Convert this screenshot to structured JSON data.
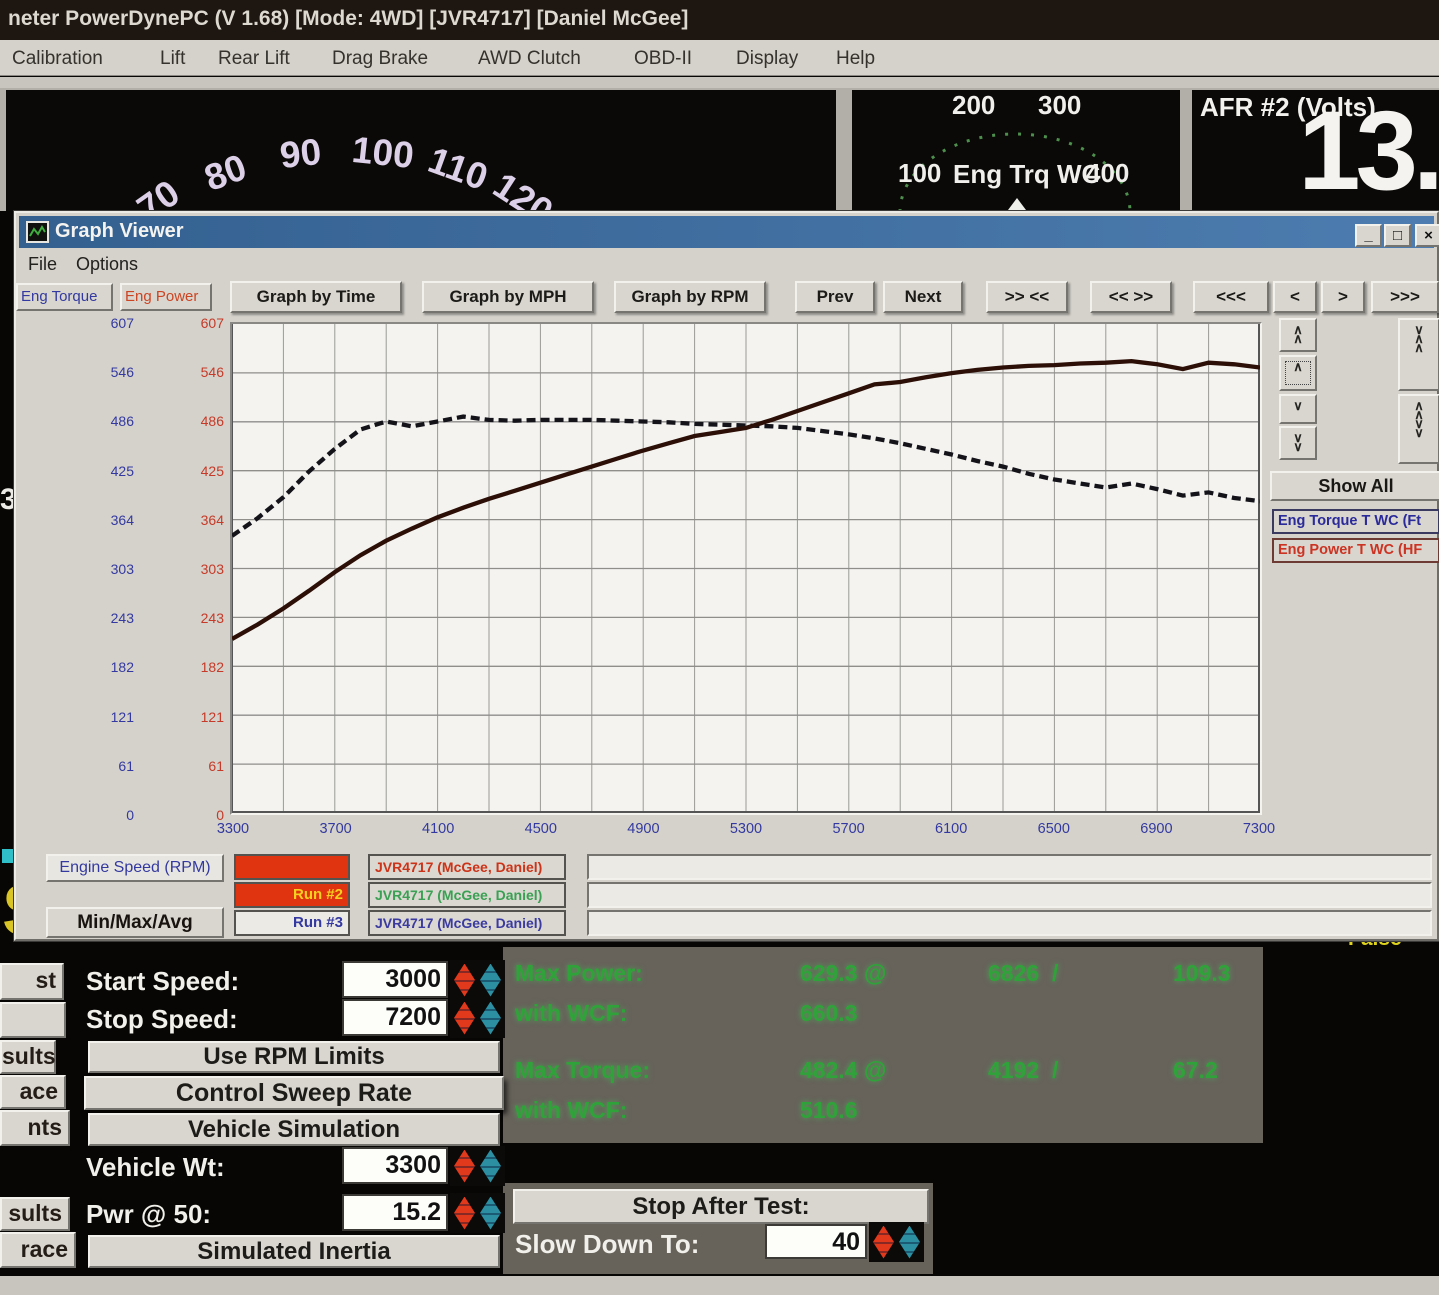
{
  "app": {
    "title": "neter PowerDynePC (V 1.68) [Mode: 4WD] [JVR4717] [Daniel McGee]",
    "menus": [
      "Calibration",
      "Lift",
      "Rear Lift",
      "Drag Brake",
      "AWD Clutch",
      "OBD-II",
      "Display",
      "Help"
    ]
  },
  "gauges": {
    "speed": {
      "ticks": [
        "70",
        "80",
        "90",
        "100",
        "110",
        "120"
      ]
    },
    "torque": {
      "ticks": [
        "100",
        "200",
        "300",
        "400"
      ],
      "label": "Eng Trq WC"
    },
    "afr": {
      "label": "AFR #2 (Volts)",
      "value": "13."
    }
  },
  "icons": {
    "minimize": "_",
    "maximize": "□",
    "close": "×",
    "up": "∧",
    "down": "∨",
    "window_icon": "graph-waveform"
  },
  "viewer": {
    "title": "Graph Viewer",
    "menus": [
      "File",
      "Options"
    ],
    "tabs": [
      "Eng Torque",
      "Eng Power"
    ],
    "toolbar": [
      "Graph by Time",
      "Graph by MPH",
      "Graph by RPM",
      "Prev",
      "Next",
      ">> <<",
      "<< >>",
      "<<<",
      "<",
      ">",
      ">>>"
    ],
    "side": {
      "show_all": "Show All",
      "legend": [
        "Eng Torque T WC (Ft",
        "Eng Power T WC (HF"
      ],
      "button_patterns": [
        "uu",
        "u",
        "d",
        "dd",
        "duu",
        "uudd"
      ]
    },
    "runs": {
      "engine_speed_btn": "Engine Speed (RPM)",
      "minmax_btn": "Min/Max/Avg",
      "rows": [
        {
          "run": "",
          "name": "JVR4717 (McGee, Daniel)"
        },
        {
          "run": "Run #2",
          "name": "JVR4717 (McGee, Daniel)"
        },
        {
          "run": "Run #3",
          "name": "JVR4717 (McGee, Daniel)"
        }
      ]
    }
  },
  "chart_data": {
    "type": "line",
    "xlabel": "Engine Speed (RPM)",
    "xlim": [
      3300,
      7300
    ],
    "ylim": [
      0,
      607
    ],
    "grid": {
      "x_step_rpm": 200,
      "y_divisions": 10
    },
    "y_ticks": [
      "607",
      "546",
      "486",
      "425",
      "364",
      "303",
      "243",
      "182",
      "121",
      "61",
      "0"
    ],
    "x_ticks": [
      "3300",
      "3700",
      "4100",
      "4500",
      "4900",
      "5300",
      "5700",
      "6100",
      "6500",
      "6900",
      "7300"
    ],
    "x_rpm": [
      3300,
      3400,
      3500,
      3600,
      3700,
      3800,
      3900,
      4000,
      4100,
      4200,
      4300,
      4400,
      4500,
      4600,
      4700,
      4800,
      4900,
      5000,
      5100,
      5200,
      5300,
      5400,
      5500,
      5600,
      5700,
      5800,
      5900,
      6000,
      6100,
      6200,
      6300,
      6400,
      6500,
      6600,
      6700,
      6800,
      6900,
      7000,
      7100,
      7200,
      7300
    ],
    "series": [
      {
        "name": "Eng Torque T WC (Ft",
        "color": "#14131a",
        "style": "dashed",
        "values": [
          344,
          366,
          392,
          424,
          452,
          476,
          486,
          480,
          486,
          492,
          488,
          487,
          488,
          488,
          488,
          487,
          486,
          485,
          483,
          482,
          481,
          480,
          478,
          474,
          470,
          465,
          459,
          452,
          445,
          437,
          430,
          421,
          414,
          409,
          404,
          409,
          402,
          394,
          398,
          391,
          387
        ]
      },
      {
        "name": "Eng Power T WC (HF",
        "color": "#2c0f06",
        "style": "solid",
        "values": [
          216,
          234,
          254,
          276,
          299,
          320,
          338,
          353,
          367,
          379,
          390,
          400,
          410,
          420,
          430,
          440,
          450,
          459,
          468,
          473,
          478,
          488,
          499,
          510,
          521,
          532,
          535,
          541,
          546,
          550,
          553,
          555,
          556,
          558,
          559,
          561,
          557,
          551,
          559,
          557,
          553
        ]
      }
    ]
  },
  "results": {
    "rows": [
      [
        "Max Power:",
        "629.3 @",
        "6826  /",
        "109.3"
      ],
      [
        "with WCF:",
        "660.3",
        "",
        ""
      ],
      [
        "Max Torque:",
        "482.4 @",
        "4192  /",
        "67.2"
      ],
      [
        "with WCF:",
        "510.6",
        "",
        ""
      ]
    ],
    "false_flag": "False"
  },
  "controls": {
    "start_speed_label": "Start Speed:",
    "start_speed": "3000",
    "stop_speed_label": "Stop Speed:",
    "stop_speed": "7200",
    "use_rpm_limits": "Use RPM Limits",
    "control_sweep_rate": "Control Sweep Rate",
    "vehicle_simulation": "Vehicle Simulation",
    "vehicle_wt_label": "Vehicle Wt:",
    "vehicle_wt": "3300",
    "pwr50_label": "Pwr @ 50:",
    "pwr50": "15.2",
    "simulated_inertia": "Simulated Inertia",
    "stop_after_test": "Stop After Test:",
    "slow_down_label": "Slow Down To:",
    "slow_down": "40"
  },
  "partials": [
    "st",
    "",
    "sults",
    "ace",
    "nts",
    "sults",
    "race"
  ],
  "colors": {
    "titlebar_blue": "#39679d",
    "run_red": "#e0330f",
    "result_green": "#2fa339",
    "flag_yellow": "#ded31e",
    "spinner_red": "#e1391c",
    "spinner_teal": "#2d8fa2"
  }
}
